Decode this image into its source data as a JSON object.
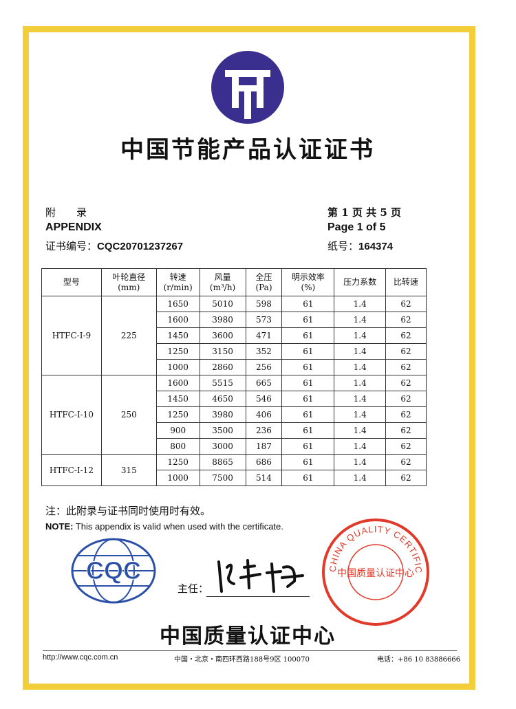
{
  "header": {
    "title": "中国节能产品认证证书",
    "appendix_cn": "附　　录",
    "appendix_en": "APPENDIX",
    "cert_no_label": "证书编号：",
    "cert_no": "CQC20701237267",
    "page_cn": "第 1 页 共 5 页",
    "page_en": "Page 1 of 5",
    "paper_no_label": "纸号：",
    "paper_no": "164374"
  },
  "table": {
    "columns": [
      "型号",
      "叶轮直径\n(mm)",
      "转速\n(r/min)",
      "风量\n(m³/h)",
      "全压\n(Pa)",
      "明示效率\n(%)",
      "压力系数",
      "比转速"
    ],
    "groups": [
      {
        "model": "HTFC-I-9",
        "diameter": "225",
        "rows": [
          [
            "1650",
            "5010",
            "598",
            "61",
            "1.4",
            "62"
          ],
          [
            "1600",
            "3980",
            "573",
            "61",
            "1.4",
            "62"
          ],
          [
            "1450",
            "3600",
            "471",
            "61",
            "1.4",
            "62"
          ],
          [
            "1250",
            "3150",
            "352",
            "61",
            "1.4",
            "62"
          ],
          [
            "1000",
            "2860",
            "256",
            "61",
            "1.4",
            "62"
          ]
        ]
      },
      {
        "model": "HTFC-I-10",
        "diameter": "250",
        "rows": [
          [
            "1600",
            "5515",
            "665",
            "61",
            "1.4",
            "62"
          ],
          [
            "1450",
            "4650",
            "546",
            "61",
            "1.4",
            "62"
          ],
          [
            "1250",
            "3980",
            "406",
            "61",
            "1.4",
            "62"
          ],
          [
            "900",
            "3500",
            "236",
            "61",
            "1.4",
            "62"
          ],
          [
            "800",
            "3000",
            "187",
            "61",
            "1.4",
            "62"
          ]
        ]
      },
      {
        "model": "HTFC-I-12",
        "diameter": "315",
        "rows": [
          [
            "1250",
            "8865",
            "686",
            "61",
            "1.4",
            "62"
          ],
          [
            "1000",
            "7500",
            "514",
            "61",
            "1.4",
            "62"
          ]
        ]
      }
    ]
  },
  "notes": {
    "cn": "注：此附录与证书同时使用时有效。",
    "en_label": "NOTE:",
    "en": " This appendix is valid when used with the certificate."
  },
  "signature": {
    "label": "主任：",
    "name": "陆梅"
  },
  "stamp": {
    "text_en": "CHINA QUALITY CERTIFICATION CENTRE",
    "text_cn": "中国质量认证中心"
  },
  "logo": {
    "cqc": "CQC"
  },
  "org": "中国质量认证中心",
  "footer": {
    "url": "http://www.cqc.com.cn",
    "address": "中国・北京・南四环西路188号9区 100070",
    "phone": "电话：+86 10 83886666"
  },
  "colors": {
    "border": "#f2cf3a",
    "logo": "#3a2e8f",
    "stamp": "#e23a2a"
  }
}
